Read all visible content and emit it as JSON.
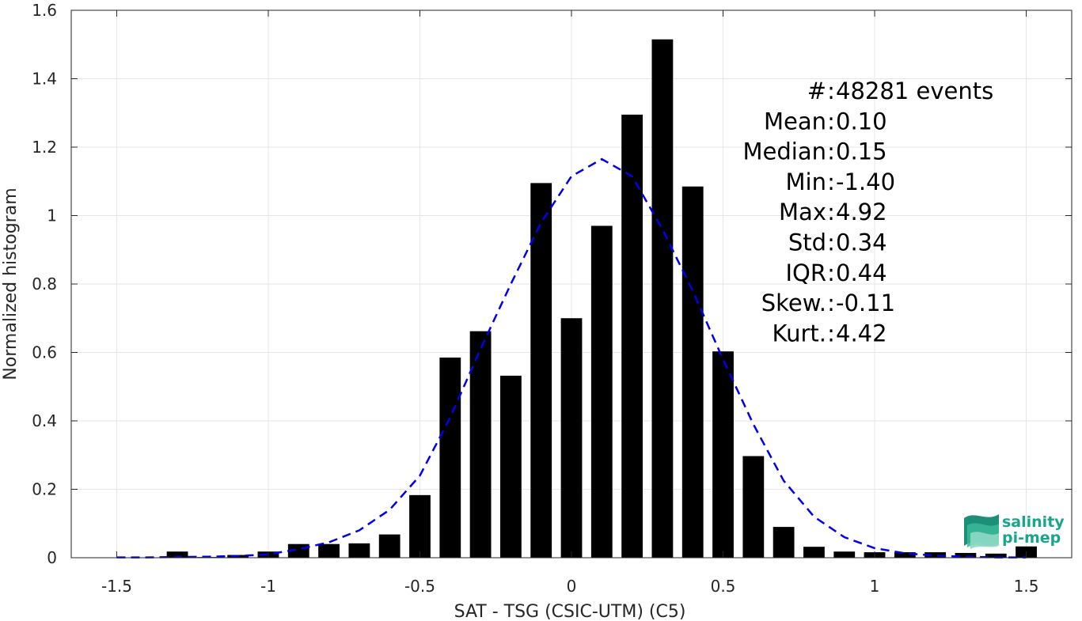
{
  "chart_data": {
    "type": "bar",
    "xlabel": "SAT - TSG (CSIC-UTM) (C5)",
    "ylabel": "Normalized histogram",
    "xlim": [
      -1.65,
      1.65
    ],
    "ylim": [
      0,
      1.6
    ],
    "xticks": [
      -1.5,
      -1,
      -0.5,
      0,
      0.5,
      1,
      1.5
    ],
    "xtick_labels": [
      "-1.5",
      "-1",
      "-0.5",
      "0",
      "0.5",
      "1",
      "1.5"
    ],
    "yticks": [
      0,
      0.2,
      0.4,
      0.6,
      0.8,
      1,
      1.2,
      1.4,
      1.6
    ],
    "ytick_labels": [
      "0",
      "0.2",
      "0.4",
      "0.6",
      "0.8",
      "1",
      "1.2",
      "1.4",
      "1.6"
    ],
    "grid": true,
    "bar_color": "#000000",
    "bar_width": 0.07,
    "bars": {
      "x": [
        -1.5,
        -1.4,
        -1.3,
        -1.2,
        -1.1,
        -1.0,
        -0.9,
        -0.8,
        -0.7,
        -0.6,
        -0.5,
        -0.4,
        -0.3,
        -0.2,
        -0.1,
        0.0,
        0.1,
        0.2,
        0.3,
        0.4,
        0.5,
        0.6,
        0.7,
        0.8,
        0.9,
        1.0,
        1.1,
        1.2,
        1.3,
        1.4,
        1.5
      ],
      "values": [
        0,
        0,
        0.018,
        0.002,
        0.008,
        0.018,
        0.04,
        0.04,
        0.042,
        0.068,
        0.183,
        0.585,
        0.662,
        0.532,
        1.095,
        0.7,
        0.97,
        1.295,
        1.515,
        1.085,
        0.603,
        0.297,
        0.09,
        0.032,
        0.018,
        0.016,
        0.016,
        0.016,
        0.014,
        0.012,
        0.033
      ]
    },
    "fit": {
      "type": "normal",
      "color": "#0000ee",
      "style": "dashed",
      "x": [
        -1.5,
        -1.4,
        -1.3,
        -1.2,
        -1.1,
        -1.0,
        -0.9,
        -0.8,
        -0.7,
        -0.6,
        -0.5,
        -0.4,
        -0.3,
        -0.2,
        -0.1,
        0.0,
        0.1,
        0.2,
        0.3,
        0.4,
        0.5,
        0.6,
        0.7,
        0.8,
        0.9,
        1.0,
        1.1,
        1.2,
        1.3,
        1.4,
        1.5
      ],
      "y": [
        0.001,
        0.001,
        0.002,
        0.003,
        0.005,
        0.01,
        0.025,
        0.045,
        0.08,
        0.14,
        0.24,
        0.41,
        0.61,
        0.8,
        0.98,
        1.115,
        1.165,
        1.115,
        0.96,
        0.78,
        0.58,
        0.39,
        0.225,
        0.12,
        0.06,
        0.028,
        0.013,
        0.006,
        0.003,
        0.001,
        0.001
      ]
    },
    "stats": [
      {
        "label": "#  ",
        "sep": " : ",
        "value": "48281 events"
      },
      {
        "label": "Mean",
        "sep": " : ",
        "value": "0.10"
      },
      {
        "label": "Median",
        "sep": " : ",
        "value": "0.15"
      },
      {
        "label": "Min",
        "sep": " : ",
        "value": "-1.40"
      },
      {
        "label": "Max",
        "sep": " : ",
        "value": "4.92"
      },
      {
        "label": "Std",
        "sep": " : ",
        "value": "0.34"
      },
      {
        "label": "IQR",
        "sep": " : ",
        "value": "0.44"
      },
      {
        "label": "Skew.",
        "sep": " : ",
        "value": "-0.11"
      },
      {
        "label": "Kurt.",
        "sep": " : ",
        "value": "4.42"
      }
    ]
  },
  "logo": {
    "line1": "salinity",
    "line2": "pi-mep",
    "color": "#1aa58a"
  }
}
